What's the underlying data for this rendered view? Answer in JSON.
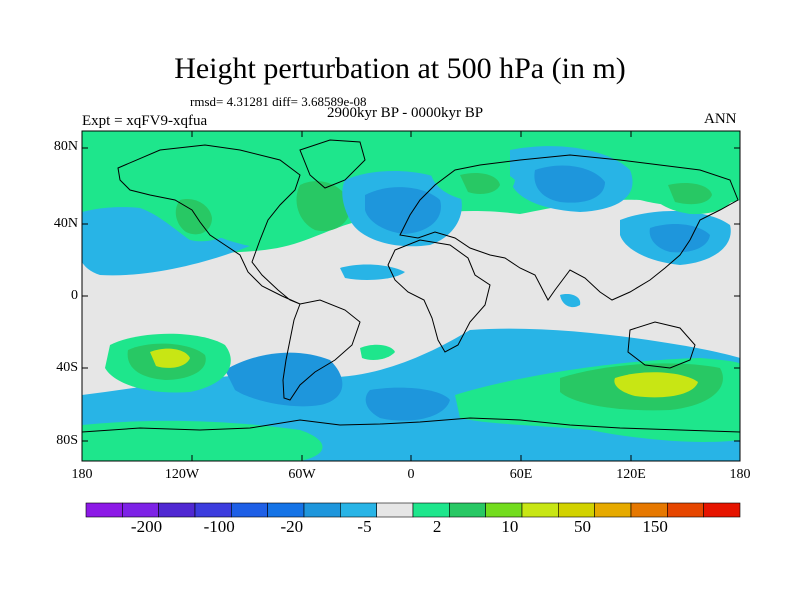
{
  "title": "Height perturbation at 500 hPa (in m)",
  "stats_line": "rmsd= 4.31281 diff= 3.68589e-08",
  "experiment_label": "Expt = xqFV9-xqfua",
  "period_label": "2900kyr BP - 0000kyr BP",
  "season_label": "ANN",
  "lat_labels": [
    "80N",
    "40N",
    "0",
    "40S",
    "80S"
  ],
  "lon_labels": [
    "180",
    "120W",
    "60W",
    "0",
    "60E",
    "120E",
    "180"
  ],
  "colorbar": {
    "colors": [
      "#8c19e6",
      "#7d22e6",
      "#5028d2",
      "#3c3cde",
      "#1e5fe6",
      "#1473e6",
      "#1e96dc",
      "#28b4e6",
      "#e6e6e6",
      "#1ee68c",
      "#28c864",
      "#73dc1e",
      "#c8e614",
      "#d2d200",
      "#e6aa00",
      "#e67800",
      "#e64600",
      "#e61400"
    ],
    "labels": [
      "-200",
      "-100",
      "-20",
      "-5",
      "2",
      "10",
      "50",
      "150"
    ]
  },
  "field_colors": {
    "neutral": "#e6e6e6",
    "neg_light": "#28b4e6",
    "neg_mid": "#1e96dc",
    "neg_strong": "#1473e6",
    "pos_light": "#1ee68c",
    "pos_mid": "#28c864",
    "pos_strong": "#c8e614"
  }
}
